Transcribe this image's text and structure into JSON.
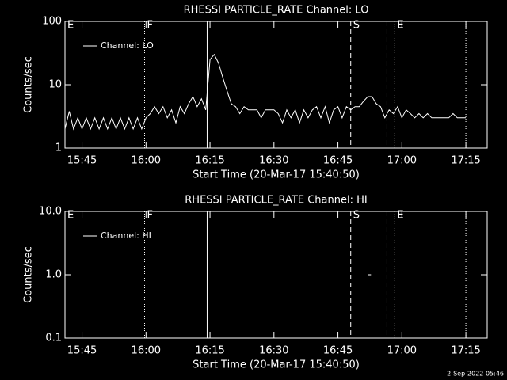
{
  "chart_data": [
    {
      "type": "line",
      "title": "RHESSI PARTICLE_RATE Channel: LO",
      "xlabel": "Start Time (20-Mar-17 15:40:50)",
      "ylabel": "Counts/sec",
      "log_y": true,
      "xlim": [
        "15:41",
        "17:20"
      ],
      "xticks": [
        "15:45",
        "16:00",
        "16:15",
        "16:30",
        "16:45",
        "17:00",
        "17:15"
      ],
      "ylim": [
        1,
        100
      ],
      "yticks": [
        1,
        10,
        100
      ],
      "x": [
        "15:41",
        "15:42",
        "15:43",
        "15:44",
        "15:45",
        "15:46",
        "15:47",
        "15:48",
        "15:49",
        "15:50",
        "15:51",
        "15:52",
        "15:53",
        "15:54",
        "15:55",
        "15:56",
        "15:57",
        "15:58",
        "15:59",
        "16:00",
        "16:01",
        "16:02",
        "16:03",
        "16:04",
        "16:05",
        "16:06",
        "16:07",
        "16:08",
        "16:09",
        "16:10",
        "16:11",
        "16:12",
        "16:13",
        "16:14",
        "16:15",
        "16:16",
        "16:17",
        "16:18",
        "16:19",
        "16:20",
        "16:21",
        "16:22",
        "16:23",
        "16:24",
        "16:25",
        "16:26",
        "16:27",
        "16:28",
        "16:29",
        "16:30",
        "16:31",
        "16:32",
        "16:33",
        "16:34",
        "16:35",
        "16:36",
        "16:37",
        "16:38",
        "16:39",
        "16:40",
        "16:41",
        "16:42",
        "16:43",
        "16:44",
        "16:45",
        "16:46",
        "16:47",
        "16:48",
        "16:49",
        "16:50",
        "16:51",
        "16:52",
        "16:53",
        "16:54",
        "16:55",
        "16:56",
        "16:57",
        "16:58",
        "16:59",
        "17:00",
        "17:01",
        "17:02",
        "17:03",
        "17:04",
        "17:05",
        "17:06",
        "17:07",
        "17:08",
        "17:09",
        "17:10",
        "17:11",
        "17:12",
        "17:13",
        "17:14",
        "17:15"
      ],
      "series": [
        {
          "name": "Channel: LO",
          "color": "#ffffff",
          "values": [
            2,
            3.8,
            2,
            3,
            2,
            3,
            2,
            3,
            2,
            3,
            2,
            3,
            2,
            3,
            2,
            3,
            2,
            3,
            2,
            3,
            3.5,
            4.5,
            3.5,
            4.5,
            3,
            4,
            2.5,
            4.5,
            3.5,
            5,
            6.5,
            4.5,
            6,
            4,
            25,
            30,
            22,
            13,
            8,
            5,
            4.5,
            3.5,
            4.5,
            4,
            4,
            4,
            3,
            4,
            4,
            4,
            3.5,
            2.5,
            4,
            3,
            4,
            2.5,
            4,
            3,
            4,
            4.5,
            3,
            4.5,
            2.5,
            4,
            4.5,
            3,
            4.5,
            4,
            4.5,
            4.5,
            5.5,
            6.5,
            6.5,
            5,
            4.5,
            3,
            4,
            3.5,
            4.5,
            3,
            4,
            3.5,
            3,
            3.5,
            3,
            3.5,
            3,
            3,
            3,
            3,
            3,
            3.5,
            3,
            3,
            3
          ]
        }
      ],
      "markers": [
        {
          "x": "15:41",
          "style": "dotted",
          "label": "E"
        },
        {
          "x": "15:59:40",
          "style": "dotted",
          "label": "F"
        },
        {
          "x": "16:14:20",
          "style": "solid"
        },
        {
          "x": "16:48",
          "style": "dashed",
          "label": "S"
        },
        {
          "x": "16:56:30",
          "style": "dashed"
        },
        {
          "x": "16:58:20",
          "style": "dotted",
          "label": "E"
        },
        {
          "x": "17:15",
          "style": "dotted"
        }
      ]
    },
    {
      "type": "line",
      "title": "RHESSI PARTICLE_RATE Channel: HI",
      "xlabel": "Start Time (20-Mar-17 15:40:50)",
      "ylabel": "Counts/sec",
      "log_y": true,
      "xlim": [
        "15:41",
        "17:20"
      ],
      "xticks": [
        "15:45",
        "16:00",
        "16:15",
        "16:30",
        "16:45",
        "17:00",
        "17:15"
      ],
      "ylim": [
        0.1,
        10
      ],
      "yticks": [
        0.1,
        {
          "value": 1,
          "label": "1.0"
        },
        {
          "value": 10,
          "label": "10.0"
        }
      ],
      "x": [
        "16:52"
      ],
      "series": [
        {
          "name": "Channel: HI",
          "color": "#ffffff",
          "values": [
            1
          ]
        }
      ],
      "markers": [
        {
          "x": "15:41",
          "style": "dotted",
          "label": "E"
        },
        {
          "x": "15:59:40",
          "style": "dotted",
          "label": "F"
        },
        {
          "x": "16:14:20",
          "style": "solid"
        },
        {
          "x": "16:48",
          "style": "dashed",
          "label": "S"
        },
        {
          "x": "16:56:30",
          "style": "dashed"
        },
        {
          "x": "16:58:20",
          "style": "dotted",
          "label": "E"
        },
        {
          "x": "17:15",
          "style": "dotted"
        }
      ]
    }
  ],
  "footer": "2-Sep-2022 05:46"
}
